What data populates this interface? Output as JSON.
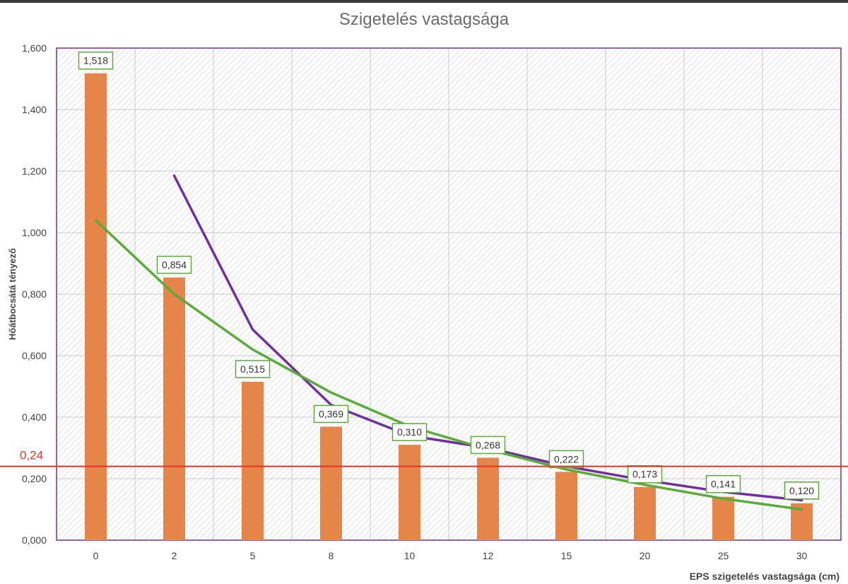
{
  "chart_data": {
    "type": "bar",
    "title": "Szigetelés vastagsága",
    "xlabel": "EPS szigetelés vastagsága (cm)",
    "ylabel": "Hőátbocsátá tényező",
    "categories": [
      "0",
      "2",
      "5",
      "8",
      "10",
      "12",
      "15",
      "20",
      "25",
      "30"
    ],
    "values": [
      1.518,
      0.854,
      0.515,
      0.369,
      0.31,
      0.268,
      0.222,
      0.173,
      0.141,
      0.12
    ],
    "data_labels": [
      "1,518",
      "0,854",
      "0,515",
      "0,369",
      "0,310",
      "0,268",
      "0,222",
      "0,173",
      "0,141",
      "0,120"
    ],
    "ylim": [
      0,
      1.6
    ],
    "yticks": [
      "0,000",
      "0,200",
      "0,400",
      "0,600",
      "0,800",
      "1,000",
      "1,200",
      "1,400",
      "1,600"
    ],
    "grid": true,
    "lines": [
      {
        "color": "#7030a0",
        "values": [
          null,
          1.185,
          0.685,
          0.44,
          0.34,
          0.3,
          0.24,
          0.195,
          0.157,
          0.13
        ]
      },
      {
        "color": "#5aab3a",
        "values": [
          1.04,
          0.8,
          0.62,
          0.48,
          0.37,
          0.295,
          0.23,
          0.18,
          0.135,
          0.1
        ]
      }
    ],
    "reference_line": {
      "value": 0.24,
      "label": "0,24",
      "color": "#e8302a"
    },
    "colors": {
      "bar": "#e5854a",
      "label_border": "#5aab3a",
      "frame": "#7030a0",
      "title": "#6b6b6b"
    }
  }
}
